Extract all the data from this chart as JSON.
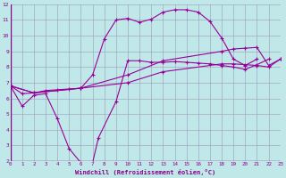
{
  "xlabel": "Windchill (Refroidissement éolien,°C)",
  "background_color": "#c0e8e8",
  "grid_color": "#9999bb",
  "line_color": "#990099",
  "xlim": [
    0,
    23
  ],
  "ylim": [
    2,
    12
  ],
  "xticks": [
    0,
    1,
    2,
    3,
    4,
    5,
    6,
    7,
    8,
    9,
    10,
    11,
    12,
    13,
    14,
    15,
    16,
    17,
    18,
    19,
    20,
    21,
    22,
    23
  ],
  "yticks": [
    2,
    3,
    4,
    5,
    6,
    7,
    8,
    9,
    10,
    11,
    12
  ],
  "line1_x": [
    0,
    1,
    2,
    3,
    4,
    5,
    6,
    7,
    7.5,
    9,
    10,
    11,
    12,
    13,
    14,
    15,
    16,
    17,
    18,
    19,
    20,
    21,
    22,
    23
  ],
  "line1_y": [
    6.8,
    5.5,
    6.2,
    6.3,
    4.7,
    2.8,
    1.9,
    1.9,
    3.5,
    5.8,
    8.4,
    8.4,
    8.3,
    8.3,
    8.35,
    8.3,
    8.25,
    8.2,
    8.1,
    8.0,
    7.85,
    8.15,
    8.5,
    null
  ],
  "line2_x": [
    0,
    1,
    2,
    3,
    4,
    5,
    6,
    7,
    8,
    9,
    10,
    11,
    12,
    13,
    14,
    15,
    16,
    17,
    18,
    19,
    20,
    21,
    22,
    23
  ],
  "line2_y": [
    6.8,
    6.3,
    6.35,
    6.5,
    6.55,
    6.6,
    6.65,
    7.5,
    9.8,
    11.0,
    11.1,
    10.85,
    11.05,
    11.5,
    11.65,
    11.65,
    11.5,
    10.9,
    9.85,
    8.5,
    8.1,
    8.5,
    null,
    null
  ],
  "line3_x": [
    0,
    2,
    6,
    10,
    13,
    18,
    19,
    20,
    21,
    22,
    23
  ],
  "line3_y": [
    6.8,
    6.35,
    6.65,
    7.5,
    8.4,
    9.0,
    9.15,
    9.2,
    9.25,
    8.1,
    8.5
  ],
  "line4_x": [
    0,
    2,
    6,
    10,
    13,
    18,
    19,
    20,
    21,
    22,
    23
  ],
  "line4_y": [
    6.8,
    6.35,
    6.65,
    7.0,
    7.7,
    8.2,
    8.2,
    8.15,
    8.1,
    8.0,
    8.5
  ]
}
